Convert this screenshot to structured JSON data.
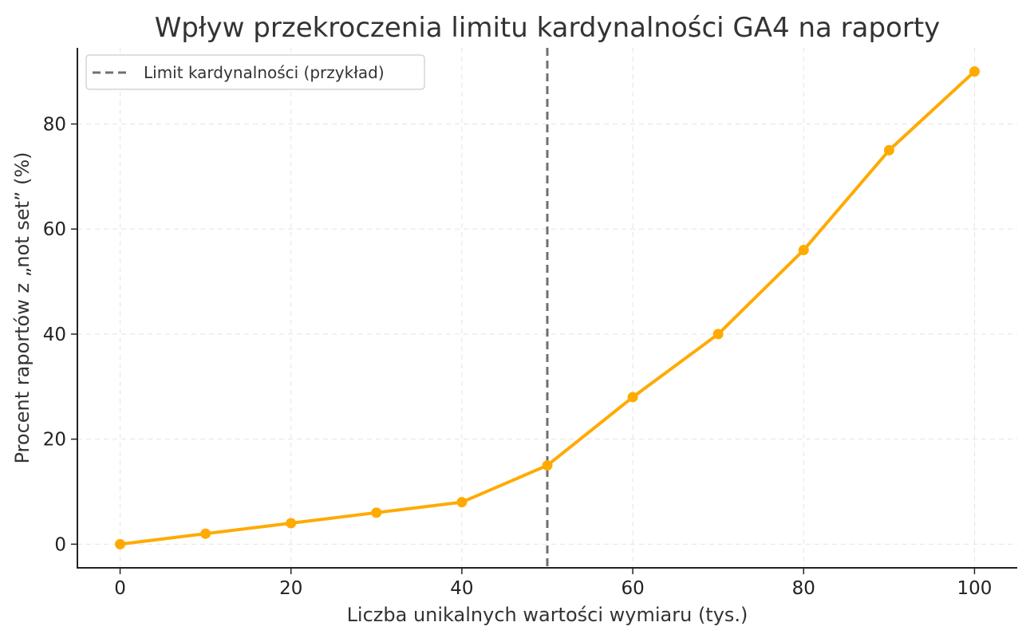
{
  "chart_data": {
    "type": "line",
    "title": "Wpływ przekroczenia limitu kardynalności GA4 na raporty",
    "xlabel": "Liczba unikalnych wartości wymiaru (tys.)",
    "ylabel": "Procent raportów z „not set” (%)",
    "xlim": [
      -5,
      105
    ],
    "ylim": [
      -4.5,
      94.5
    ],
    "xticks": [
      0,
      20,
      40,
      60,
      80,
      100
    ],
    "yticks": [
      0,
      20,
      40,
      60,
      80
    ],
    "grid": true,
    "legend_position": "top-left",
    "series": [
      {
        "x": [
          0,
          10,
          20,
          30,
          40,
          50,
          60,
          70,
          80,
          90,
          100
        ],
        "y": [
          0,
          2,
          4,
          6,
          8,
          15,
          28,
          40,
          56,
          75,
          90
        ],
        "color": "#FFAA00",
        "marker": "circle"
      }
    ],
    "reference_lines": [
      {
        "orientation": "vertical",
        "x": 50,
        "style": "dashed",
        "color": "#707070",
        "label": "Limit kardynalności (przykład)"
      }
    ]
  }
}
